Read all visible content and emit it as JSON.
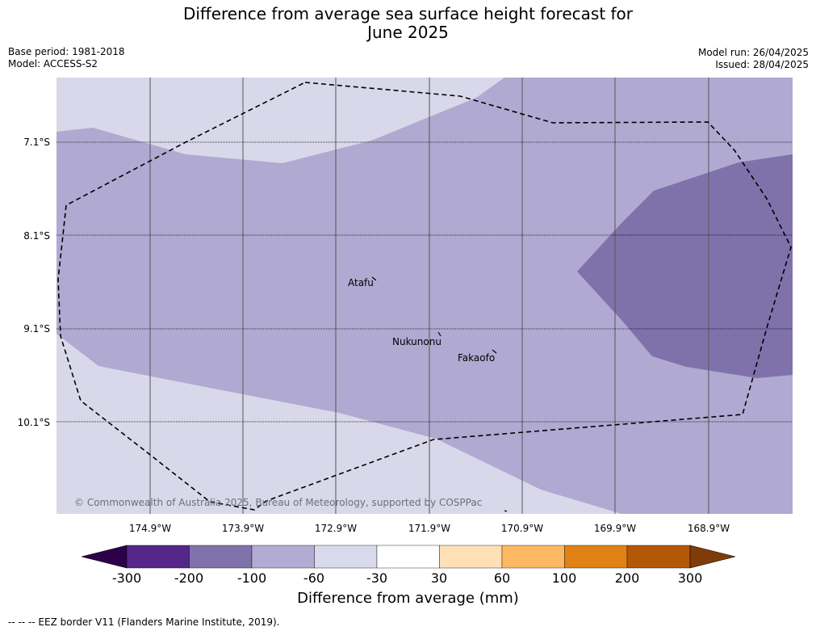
{
  "header": {
    "title_line1": "Difference from average sea surface height forecast for",
    "title_line2": "June 2025",
    "base_period": "Base period: 1981-2018",
    "model": "Model: ACCESS-S2",
    "model_run": "Model run: 26/04/2025",
    "issued": "Issued: 28/04/2025"
  },
  "map": {
    "lat_labels": [
      "7.1°S",
      "8.1°S",
      "9.1°S",
      "10.1°S"
    ],
    "lon_labels": [
      "174.9°W",
      "173.9°W",
      "172.9°W",
      "171.9°W",
      "170.9°W",
      "169.9°W",
      "168.9°W"
    ],
    "places": [
      "Atafu",
      "Nukunonu",
      "Fakaofo"
    ],
    "copyright": "© Commonwealth of Australia 2025, Bureau of Meteorology, supported by COSPPac",
    "colors": {
      "band_m30_to_m60": "#d9d8ea",
      "band_m60_to_m100": "#b0a9d1",
      "band_m100_to_m200": "#7f72ab"
    }
  },
  "colorbar": {
    "title": "Difference from average (mm)",
    "ticks": [
      "-300",
      "-200",
      "-100",
      "-60",
      "-30",
      "30",
      "60",
      "100",
      "200",
      "300"
    ],
    "colors": [
      "#2d004b",
      "#542788",
      "#8073ac",
      "#b2abd2",
      "#d8daeb",
      "#ffffff",
      "#fee0b6",
      "#fdb863",
      "#e08214",
      "#b35806",
      "#7f3b08"
    ]
  },
  "legend": {
    "eez_text": "-- -- -- EEZ border V11 (Flanders Marine Institute, 2019)."
  }
}
